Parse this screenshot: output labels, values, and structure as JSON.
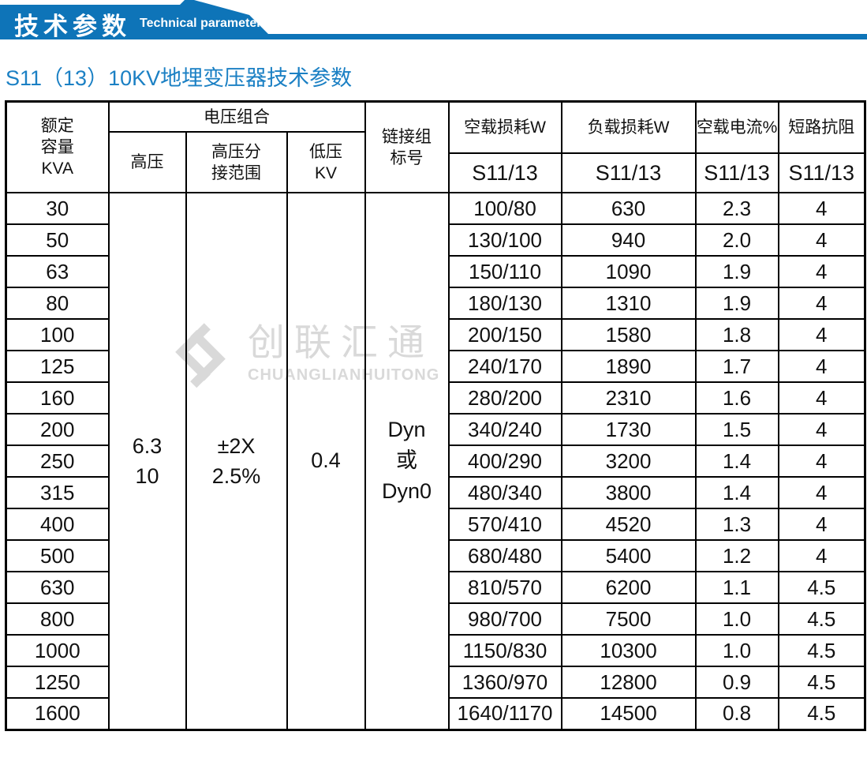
{
  "banner": {
    "title_cn": "技术参数",
    "title_en": "Technical parameter"
  },
  "page_title": "S11（13）10KV地埋变压器技术参数",
  "watermark": {
    "brand_cn": "创联汇通",
    "brand_en": "CHUANGLIANHUITONG",
    "logo_icon": "interlocked-diamonds-logo",
    "color": "#d9d9d9"
  },
  "colors": {
    "banner_blue": "#0e74b8",
    "title_blue": "#1b80c4",
    "header_bg": "#c9e8f9",
    "border": "#000000"
  },
  "table": {
    "header": {
      "capacity_lines": [
        "额定",
        "容量",
        "KVA"
      ],
      "voltage_group": "电压组合",
      "hv": "高压",
      "hv_tap_lines": [
        "高压分",
        "接范围"
      ],
      "lv_lines": [
        "低压",
        "KV"
      ],
      "link_lines": [
        "链接组",
        "标号"
      ],
      "no_load_loss": "空载损耗W",
      "load_loss": "负载损耗W",
      "no_load_current": "空载电流%",
      "impedance": "短路抗阻",
      "sub_model": "S11/13"
    },
    "merged": {
      "hv_lines": [
        "6.3",
        "10"
      ],
      "tap_lines": [
        "±2X",
        "2.5%"
      ],
      "lv": "0.4",
      "link_lines": [
        "Dyn",
        "或",
        "Dyn0"
      ]
    },
    "rows": [
      {
        "capacity": "30",
        "no_load_loss": "100/80",
        "load_loss": "630",
        "no_load_current": "2.3",
        "impedance": "4"
      },
      {
        "capacity": "50",
        "no_load_loss": "130/100",
        "load_loss": "940",
        "no_load_current": "2.0",
        "impedance": "4"
      },
      {
        "capacity": "63",
        "no_load_loss": "150/110",
        "load_loss": "1090",
        "no_load_current": "1.9",
        "impedance": "4"
      },
      {
        "capacity": "80",
        "no_load_loss": "180/130",
        "load_loss": "1310",
        "no_load_current": "1.9",
        "impedance": "4"
      },
      {
        "capacity": "100",
        "no_load_loss": "200/150",
        "load_loss": "1580",
        "no_load_current": "1.8",
        "impedance": "4"
      },
      {
        "capacity": "125",
        "no_load_loss": "240/170",
        "load_loss": "1890",
        "no_load_current": "1.7",
        "impedance": "4"
      },
      {
        "capacity": "160",
        "no_load_loss": "280/200",
        "load_loss": "2310",
        "no_load_current": "1.6",
        "impedance": "4"
      },
      {
        "capacity": "200",
        "no_load_loss": "340/240",
        "load_loss": "1730",
        "no_load_current": "1.5",
        "impedance": "4"
      },
      {
        "capacity": "250",
        "no_load_loss": "400/290",
        "load_loss": "3200",
        "no_load_current": "1.4",
        "impedance": "4"
      },
      {
        "capacity": "315",
        "no_load_loss": "480/340",
        "load_loss": "3800",
        "no_load_current": "1.4",
        "impedance": "4"
      },
      {
        "capacity": "400",
        "no_load_loss": "570/410",
        "load_loss": "4520",
        "no_load_current": "1.3",
        "impedance": "4"
      },
      {
        "capacity": "500",
        "no_load_loss": "680/480",
        "load_loss": "5400",
        "no_load_current": "1.2",
        "impedance": "4"
      },
      {
        "capacity": "630",
        "no_load_loss": "810/570",
        "load_loss": "6200",
        "no_load_current": "1.1",
        "impedance": "4.5"
      },
      {
        "capacity": "800",
        "no_load_loss": "980/700",
        "load_loss": "7500",
        "no_load_current": "1.0",
        "impedance": "4.5"
      },
      {
        "capacity": "1000",
        "no_load_loss": "1150/830",
        "load_loss": "10300",
        "no_load_current": "1.0",
        "impedance": "4.5"
      },
      {
        "capacity": "1250",
        "no_load_loss": "1360/970",
        "load_loss": "12800",
        "no_load_current": "0.9",
        "impedance": "4.5"
      },
      {
        "capacity": "1600",
        "no_load_loss": "1640/1170",
        "load_loss": "14500",
        "no_load_current": "0.8",
        "impedance": "4.5"
      }
    ]
  }
}
